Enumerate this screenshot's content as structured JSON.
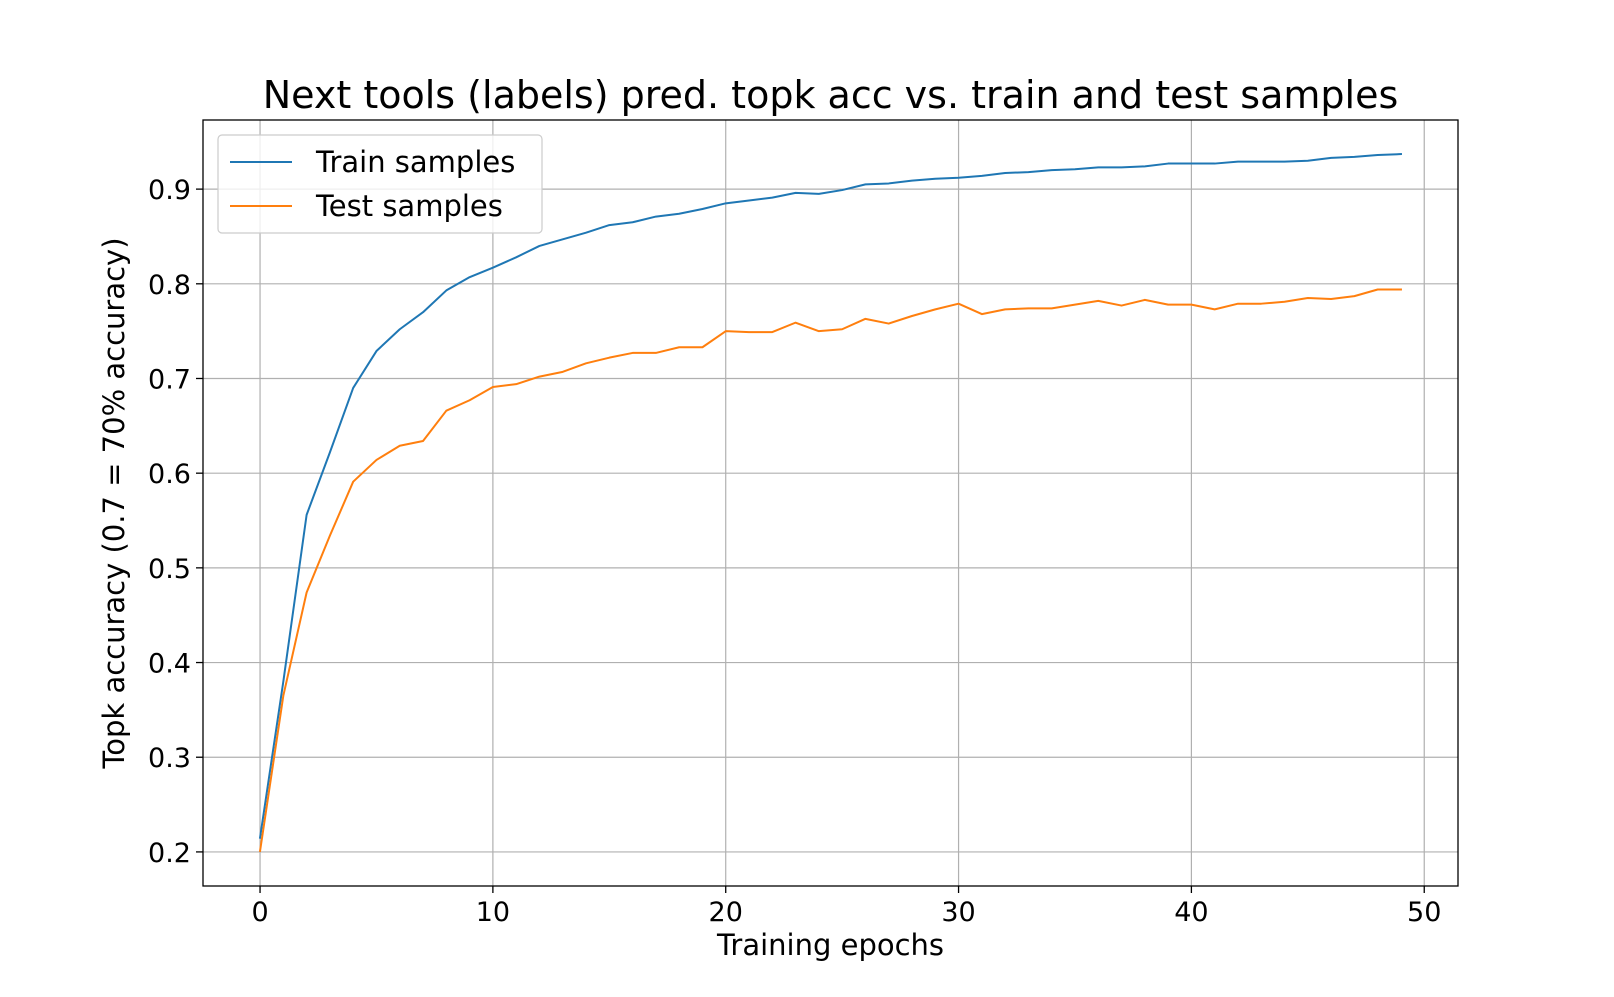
{
  "chart_data": {
    "type": "line",
    "title": "Next tools (labels) pred. topk acc vs. train and test samples",
    "xlabel": "Training epochs",
    "ylabel": "Topk accuracy (0.7 = 70% accuracy)",
    "xlim": [
      -2.45,
      51.45
    ],
    "ylim": [
      0.164,
      0.973
    ],
    "x_ticks": [
      0,
      10,
      20,
      30,
      40,
      50
    ],
    "y_ticks": [
      0.2,
      0.3,
      0.4,
      0.5,
      0.6,
      0.7,
      0.8,
      0.9
    ],
    "grid": true,
    "legend_position": "upper left",
    "x": [
      0,
      1,
      2,
      3,
      4,
      5,
      6,
      7,
      8,
      9,
      10,
      11,
      12,
      13,
      14,
      15,
      16,
      17,
      18,
      19,
      20,
      21,
      22,
      23,
      24,
      25,
      26,
      27,
      28,
      29,
      30,
      31,
      32,
      33,
      34,
      35,
      36,
      37,
      38,
      39,
      40,
      41,
      42,
      43,
      44,
      45,
      46,
      47,
      48,
      49
    ],
    "series": [
      {
        "name": "Train samples",
        "color": "#1f77b4",
        "values": [
          0.215,
          0.38,
          0.556,
          0.622,
          0.69,
          0.729,
          0.752,
          0.77,
          0.793,
          0.807,
          0.817,
          0.828,
          0.84,
          0.847,
          0.854,
          0.862,
          0.865,
          0.871,
          0.874,
          0.879,
          0.885,
          0.888,
          0.891,
          0.896,
          0.895,
          0.899,
          0.905,
          0.906,
          0.909,
          0.911,
          0.912,
          0.914,
          0.917,
          0.918,
          0.92,
          0.921,
          0.923,
          0.923,
          0.924,
          0.927,
          0.927,
          0.927,
          0.929,
          0.929,
          0.929,
          0.93,
          0.933,
          0.934,
          0.936,
          0.937
        ]
      },
      {
        "name": "Test samples",
        "color": "#ff7f0e",
        "values": [
          0.201,
          0.365,
          0.474,
          0.534,
          0.591,
          0.614,
          0.629,
          0.634,
          0.666,
          0.677,
          0.691,
          0.694,
          0.702,
          0.707,
          0.716,
          0.722,
          0.727,
          0.727,
          0.733,
          0.733,
          0.75,
          0.749,
          0.749,
          0.759,
          0.75,
          0.752,
          0.763,
          0.758,
          0.766,
          0.773,
          0.779,
          0.768,
          0.773,
          0.774,
          0.774,
          0.778,
          0.782,
          0.777,
          0.783,
          0.778,
          0.778,
          0.773,
          0.779,
          0.779,
          0.781,
          0.785,
          0.784,
          0.787,
          0.794,
          0.794
        ]
      }
    ]
  }
}
